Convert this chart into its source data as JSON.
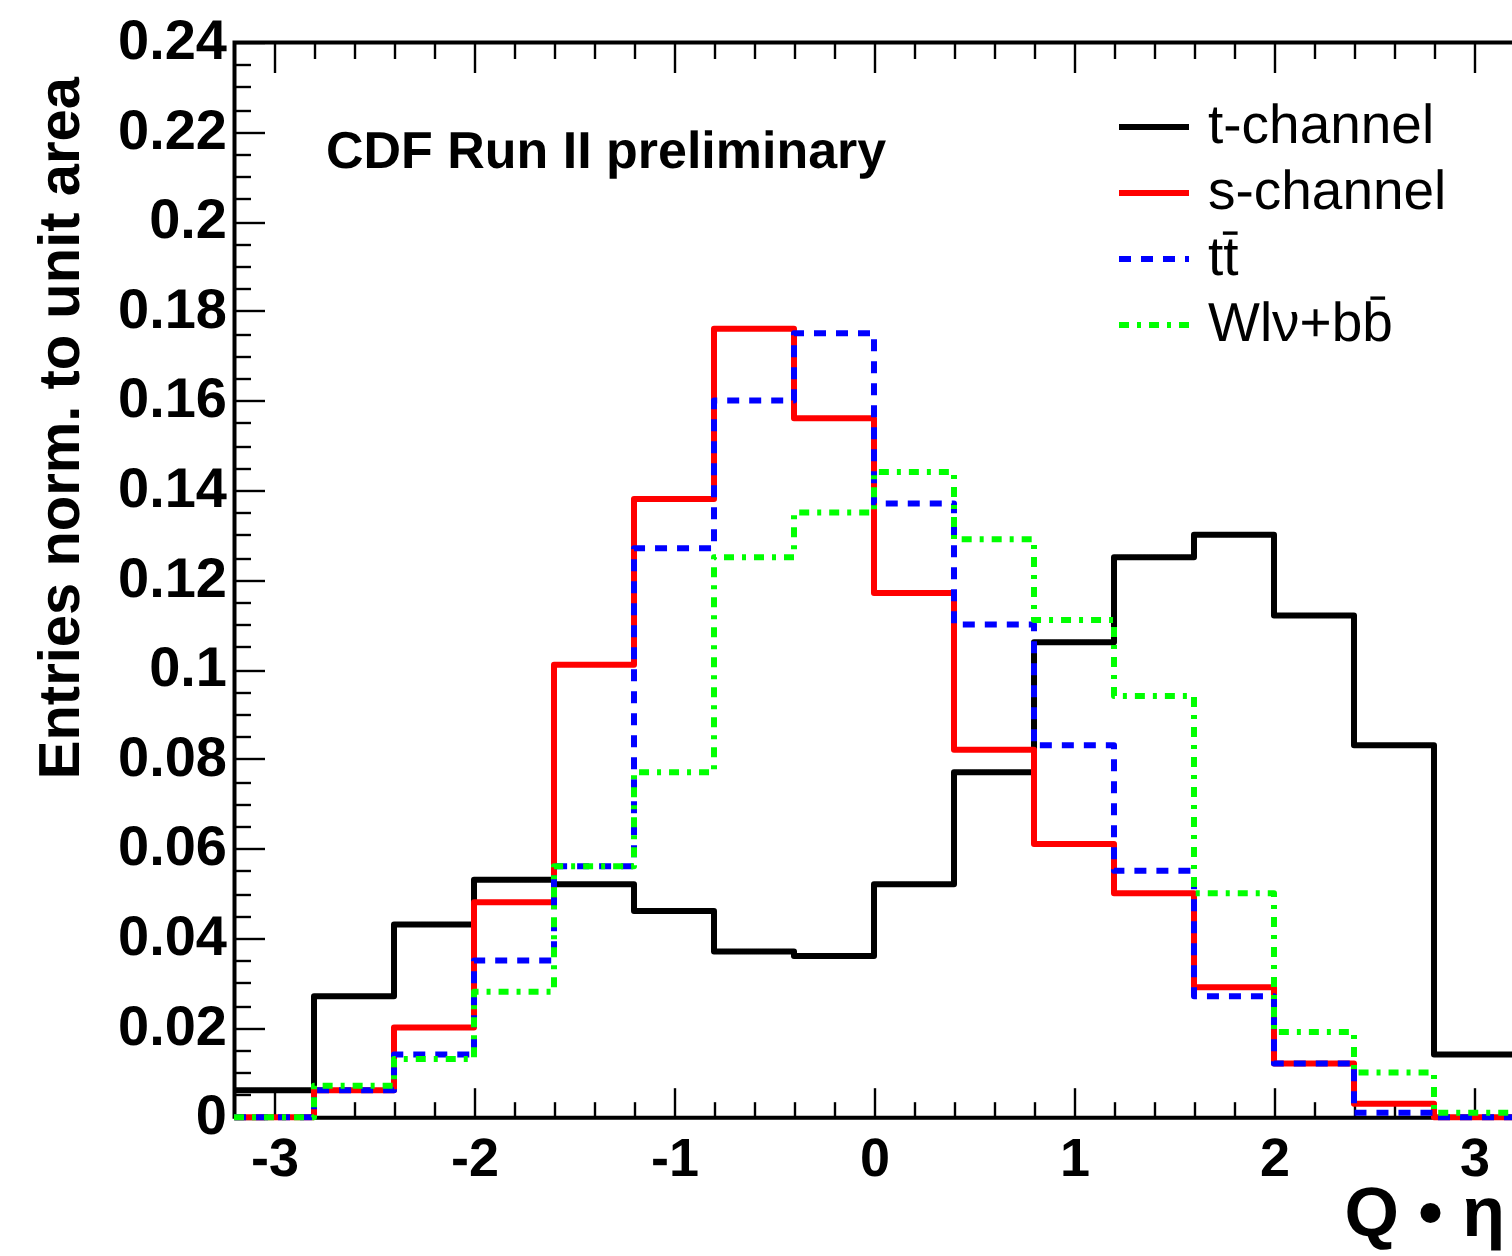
{
  "chart_data": {
    "type": "histogram",
    "annotations": [
      "CDF Run II preliminary"
    ],
    "xlabel": "Q • η",
    "ylabel": "Entries norm. to unit area",
    "bins": [
      -3.2,
      -2.8,
      -2.4,
      -2,
      -1.6,
      -1.2,
      -0.8,
      -0.4,
      0,
      0.4,
      0.8,
      1.2,
      1.6,
      2,
      2.4,
      2.8,
      3.2
    ],
    "series": [
      {
        "name": "t-channel",
        "color": "#000000",
        "line_style": "solid",
        "values": [
          0.006,
          0.027,
          0.043,
          0.053,
          0.052,
          0.046,
          0.037,
          0.036,
          0.052,
          0.077,
          0.106,
          0.125,
          0.13,
          0.112,
          0.083,
          0.014
        ]
      },
      {
        "name": "s-channel",
        "color": "#ff0000",
        "line_style": "solid",
        "values": [
          0,
          0.006,
          0.02,
          0.048,
          0.101,
          0.138,
          0.176,
          0.156,
          0.117,
          0.082,
          0.061,
          0.05,
          0.029,
          0.012,
          0.003,
          0
        ]
      },
      {
        "name": "tt̄",
        "color": "#0000ff",
        "line_style": "dashed",
        "values": [
          0,
          0.006,
          0.014,
          0.035,
          0.056,
          0.127,
          0.16,
          0.175,
          0.137,
          0.11,
          0.083,
          0.055,
          0.027,
          0.012,
          0.001,
          0
        ]
      },
      {
        "name": "Wlν+bb̄",
        "color": "#00ff00",
        "line_style": "dotted",
        "values": [
          0,
          0.007,
          0.013,
          0.028,
          0.056,
          0.077,
          0.125,
          0.135,
          0.144,
          0.129,
          0.111,
          0.094,
          0.05,
          0.019,
          0.01,
          0.001
        ]
      }
    ],
    "xlim": [
      -3.2,
      3.2
    ],
    "ylim": [
      0,
      0.24
    ],
    "xticks": [
      -3,
      {
        "value": -2.8,
        "label": null
      },
      {
        "value": -2.6,
        "label": null
      },
      {
        "value": -2.4,
        "label": null
      },
      {
        "value": -2.2,
        "label": null
      },
      -2,
      {
        "value": -1.8,
        "label": null
      },
      {
        "value": -1.6,
        "label": null
      },
      {
        "value": -1.4,
        "label": null
      },
      {
        "value": -1.2,
        "label": null
      },
      -1,
      {
        "value": -0.8,
        "label": null
      },
      {
        "value": -0.6,
        "label": null
      },
      {
        "value": -0.4,
        "label": null
      },
      {
        "value": -0.2,
        "label": null
      },
      0,
      {
        "value": 0.2,
        "label": null
      },
      {
        "value": 0.4,
        "label": null
      },
      {
        "value": 0.6,
        "label": null
      },
      {
        "value": 0.8,
        "label": null
      },
      1,
      {
        "value": 1.2,
        "label": null
      },
      {
        "value": 1.4,
        "label": null
      },
      {
        "value": 1.6,
        "label": null
      },
      {
        "value": 1.8,
        "label": null
      },
      2,
      {
        "value": 2.2,
        "label": null
      },
      {
        "value": 2.4,
        "label": null
      },
      {
        "value": 2.6,
        "label": null
      },
      {
        "value": 2.8,
        "label": null
      },
      3
    ],
    "yticks": [
      0,
      {
        "value": 0.005,
        "label": null
      },
      {
        "value": 0.01,
        "label": null
      },
      {
        "value": 0.015,
        "label": null
      },
      0.02,
      {
        "value": 0.025,
        "label": null
      },
      {
        "value": 0.03,
        "label": null
      },
      {
        "value": 0.035,
        "label": null
      },
      0.04,
      {
        "value": 0.045,
        "label": null
      },
      {
        "value": 0.05,
        "label": null
      },
      {
        "value": 0.055,
        "label": null
      },
      0.06,
      {
        "value": 0.065,
        "label": null
      },
      {
        "value": 0.07,
        "label": null
      },
      {
        "value": 0.075,
        "label": null
      },
      0.08,
      {
        "value": 0.085,
        "label": null
      },
      {
        "value": 0.09,
        "label": null
      },
      {
        "value": 0.095,
        "label": null
      },
      0.1,
      {
        "value": 0.105,
        "label": null
      },
      {
        "value": 0.11,
        "label": null
      },
      {
        "value": 0.115,
        "label": null
      },
      0.12,
      {
        "value": 0.125,
        "label": null
      },
      {
        "value": 0.13,
        "label": null
      },
      {
        "value": 0.135,
        "label": null
      },
      0.14,
      {
        "value": 0.145,
        "label": null
      },
      {
        "value": 0.15,
        "label": null
      },
      {
        "value": 0.155,
        "label": null
      },
      0.16,
      {
        "value": 0.165,
        "label": null
      },
      {
        "value": 0.17,
        "label": null
      },
      {
        "value": 0.175,
        "label": null
      },
      0.18,
      {
        "value": 0.185,
        "label": null
      },
      {
        "value": 0.19,
        "label": null
      },
      {
        "value": 0.195,
        "label": null
      },
      0.2,
      {
        "value": 0.205,
        "label": null
      },
      {
        "value": 0.21,
        "label": null
      },
      {
        "value": 0.215,
        "label": null
      },
      0.22,
      {
        "value": 0.225,
        "label": null
      },
      {
        "value": 0.23,
        "label": null
      },
      {
        "value": 0.235,
        "label": null
      },
      0.24
    ],
    "legend": "top right"
  }
}
